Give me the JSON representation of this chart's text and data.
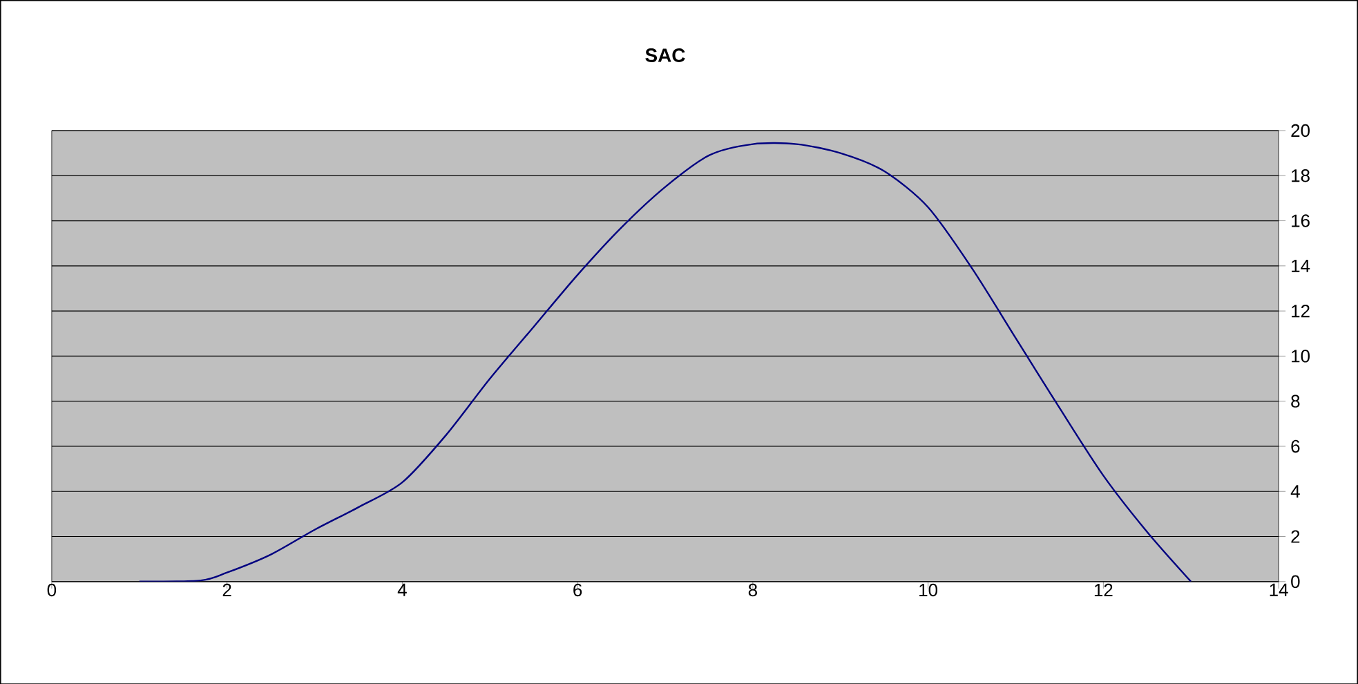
{
  "chart_data": {
    "type": "line",
    "title": "SAC",
    "x": [
      1,
      1.7,
      2,
      2.5,
      3,
      3.5,
      4,
      4.5,
      5,
      5.5,
      6,
      6.5,
      7,
      7.5,
      8,
      8.5,
      9,
      9.5,
      10,
      10.5,
      11,
      11.5,
      12,
      12.5,
      13
    ],
    "series": [
      {
        "color": "#000080",
        "values": [
          0,
          0.05,
          0.4,
          1.2,
          2.3,
          3.3,
          4.4,
          6.5,
          9.0,
          11.3,
          13.6,
          15.7,
          17.5,
          18.9,
          19.4,
          19.4,
          19.0,
          18.2,
          16.6,
          13.9,
          10.8,
          7.7,
          4.7,
          2.2,
          0
        ]
      }
    ],
    "xlim": [
      0,
      14
    ],
    "xticks": [
      0,
      2,
      4,
      6,
      8,
      10,
      12,
      14
    ],
    "ylim": [
      0,
      20
    ],
    "yticks": [
      0,
      2,
      4,
      6,
      8,
      10,
      12,
      14,
      16,
      18,
      20
    ],
    "grid": "y",
    "marker": "none",
    "line_style": "solid"
  }
}
